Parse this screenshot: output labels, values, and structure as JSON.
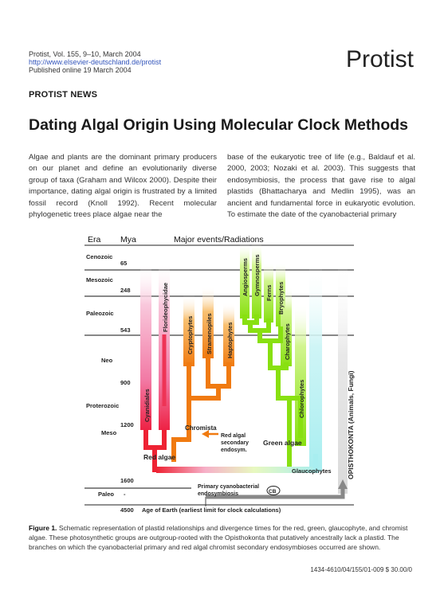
{
  "header": {
    "citation": "Protist, Vol. 155, 9–10, March 2004",
    "url": "http://www.elsevier-deutschland.de/protist",
    "published": "Published online 19 March 2004",
    "journal": "Protist"
  },
  "section": "PROTIST NEWS",
  "title": "Dating Algal Origin Using Molecular Clock Methods",
  "body": {
    "col1": "Algae and plants are the dominant primary producers on our planet and define an evolutionarily diverse group of taxa (Graham and Wilcox 2000). Despite their importance, dating algal origin is frustrated by a limited fossil record (Knoll 1992). Recent molecular phylogenetic trees place algae near the",
    "col2": "base of the eukaryotic tree of life (e.g., Baldauf et al. 2000, 2003; Nozaki et al. 2003). This suggests that endosymbiosis, the process that gave rise to algal plastids (Bhattacharya and Medlin 1995), was an ancient and fundamental force in eukaryotic evolution. To estimate the date of the cyanobacterial primary"
  },
  "figure": {
    "header": {
      "era": "Era",
      "mya": "Mya",
      "events": "Major events/Radiations"
    },
    "eras": [
      "Cenozoic",
      "Mesozoic",
      "Paleozoic",
      "Neo",
      "Proterozoic",
      "Meso",
      "Paleo"
    ],
    "times": [
      "65",
      "248",
      "543",
      "900",
      "1200",
      "1600",
      "-",
      "4500"
    ],
    "axis_label": "Age of Earth (earliest limit for clock calculations)",
    "lineages": {
      "cyanidiales": "Cyanidiales",
      "florideophycidae": "Florideophycidae",
      "cryptophytes": "Cryptophytes",
      "stramenopiles": "Stramenopiles",
      "haptophytes": "Haptophytes",
      "angiosperms": "Angiosperms",
      "gymnosperms": "Gymnosperms",
      "ferns": "Ferns",
      "bryophytes": "Bryophytes",
      "charophytes": "Charophytes",
      "chlorophytes": "Chlorophytes",
      "opisthokonta": "OPISTHOKONTA (Animals, Fungi)"
    },
    "groups": {
      "chromista": "Chromista",
      "red_algae": "Red algae",
      "green_algae": "Green algae",
      "glaucophytes": "Glaucophytes"
    },
    "annotations": {
      "red_secondary_1": "Red algal",
      "red_secondary_2": "secondary",
      "red_secondary_3": "endosym.",
      "primary_1": "Primary cyanobacterial",
      "primary_2": "endosymbiosis",
      "cb": "CB"
    },
    "colors": {
      "red": "#ee2222",
      "orange": "#f07a10",
      "green": "#88e010",
      "cyan": "#a8eef0",
      "pink": "#f7a8c8",
      "gray": "#999999"
    }
  },
  "caption": {
    "label": "Figure 1.",
    "text": "Schematic representation of plastid relationships and divergence times for the red, green, glaucophyte, and chromist algae. These photosynthetic groups are outgroup-rooted with the Opisthokonta that putatively ancestrally lack a plastid. The branches on which the cyanobacterial primary and red algal chromist secondary endosymbioses occurred are shown."
  },
  "code": "1434-4610/04/155/01-009 $ 30.00/0"
}
